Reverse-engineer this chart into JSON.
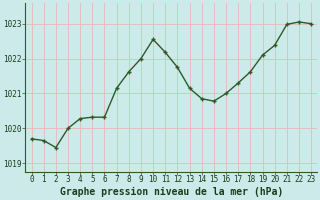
{
  "x": [
    0,
    1,
    2,
    3,
    4,
    5,
    6,
    7,
    8,
    9,
    10,
    11,
    12,
    13,
    14,
    15,
    16,
    17,
    18,
    19,
    20,
    21,
    22,
    23
  ],
  "y": [
    1019.7,
    1019.65,
    1019.45,
    1020.0,
    1020.28,
    1020.32,
    1020.32,
    1021.15,
    1021.62,
    1022.0,
    1022.55,
    1022.18,
    1021.75,
    1021.15,
    1020.85,
    1020.78,
    1021.0,
    1021.3,
    1021.62,
    1022.1,
    1022.38,
    1022.98,
    1023.05,
    1023.0
  ],
  "line_color": "#2d5a27",
  "marker_color": "#2d5a27",
  "bg_color": "#cceaea",
  "grid_color": "#e8b8b8",
  "axis_color": "#2d5a27",
  "title": "Graphe pression niveau de la mer (hPa)",
  "title_color": "#1a3d1a",
  "ylim_min": 1018.75,
  "ylim_max": 1023.6,
  "yticks": [
    1019,
    1020,
    1021,
    1022,
    1023
  ],
  "xticks": [
    0,
    1,
    2,
    3,
    4,
    5,
    6,
    7,
    8,
    9,
    10,
    11,
    12,
    13,
    14,
    15,
    16,
    17,
    18,
    19,
    20,
    21,
    22,
    23
  ],
  "tick_fontsize": 5.5,
  "title_fontsize": 7,
  "marker_size": 2.5,
  "line_width": 1.0
}
